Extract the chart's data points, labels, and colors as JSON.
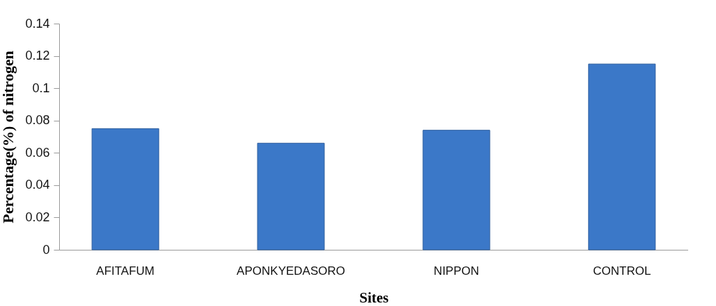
{
  "chart_data": {
    "type": "bar",
    "xlabel": "Sites",
    "ylabel": "Percentage(%)  of nitrogen",
    "categories": [
      "AFITAFUM",
      "APONKYEDASORO",
      "NIPPON",
      "CONTROL"
    ],
    "series": [
      {
        "color": "#3b78c8",
        "values": [
          0.075,
          0.066,
          0.074,
          0.115
        ]
      }
    ],
    "ylim": [
      0,
      0.14
    ],
    "yticks": [
      0,
      0.02,
      0.04,
      0.06,
      0.08,
      0.1,
      0.12,
      0.14
    ],
    "grid": false,
    "legend": false
  }
}
